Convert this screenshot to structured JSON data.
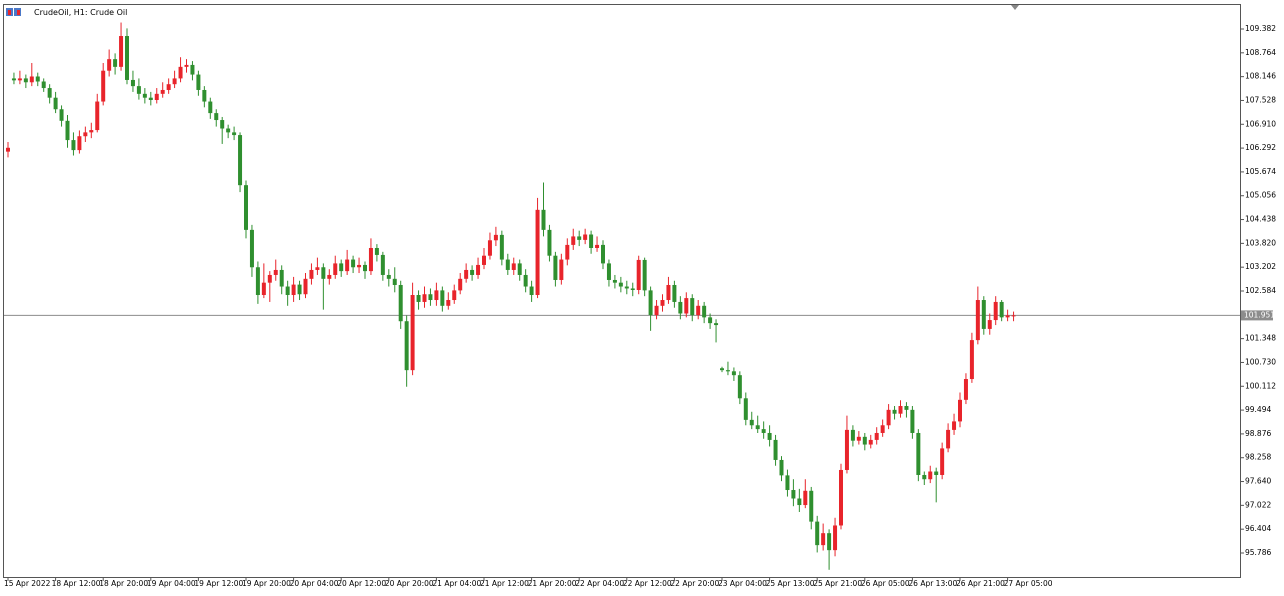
{
  "chart_data": {
    "type": "candlestick",
    "title": "CrudeOil, H1:  Crude Oil",
    "up_color": "#e8242b",
    "down_color": "#2f8f2f",
    "categories": [
      "15 Apr 2022",
      null,
      null,
      null,
      null,
      null,
      null,
      null,
      "18 Apr 12:00",
      null,
      null,
      null,
      null,
      null,
      null,
      null,
      "18 Apr 20:00",
      null,
      null,
      null,
      null,
      null,
      null,
      null,
      "19 Apr 04:00",
      null,
      null,
      null,
      null,
      null,
      null,
      null,
      "19 Apr 12:00",
      null,
      null,
      null,
      null,
      null,
      null,
      null,
      "19 Apr 20:00",
      null,
      null,
      null,
      null,
      null,
      null,
      null,
      "20 Apr 04:00",
      null,
      null,
      null,
      null,
      null,
      null,
      null,
      "20 Apr 12:00",
      null,
      null,
      null,
      null,
      null,
      null,
      null,
      "20 Apr 20:00",
      null,
      null,
      null,
      null,
      null,
      null,
      null,
      "21 Apr 04:00",
      null,
      null,
      null,
      null,
      null,
      null,
      null,
      "21 Apr 12:00",
      null,
      null,
      null,
      null,
      null,
      null,
      null,
      "21 Apr 20:00",
      null,
      null,
      null,
      null,
      null,
      null,
      null,
      "22 Apr 04:00",
      null,
      null,
      null,
      null,
      null,
      null,
      null,
      "22 Apr 12:00",
      null,
      null,
      null,
      null,
      null,
      null,
      null,
      "22 Apr 20:00",
      null,
      null,
      null,
      null,
      null,
      null,
      null,
      "23 Apr 04:00",
      null,
      null,
      null,
      null,
      null,
      null,
      null,
      "25 Apr 13:00",
      null,
      null,
      null,
      null,
      null,
      null,
      null,
      "25 Apr 21:00",
      null,
      null,
      null,
      null,
      null,
      null,
      null,
      "26 Apr 05:00",
      null,
      null,
      null,
      null,
      null,
      null,
      null,
      "26 Apr 13:00",
      null,
      null,
      null,
      null,
      null,
      null,
      null,
      "26 Apr 21:00",
      null,
      null,
      null,
      null,
      null,
      null,
      null,
      "27 Apr 05:00",
      null
    ],
    "open": [
      106.2,
      108.1,
      108.05,
      108.1,
      108.0,
      108.15,
      108.02,
      107.85,
      107.6,
      107.3,
      107.0,
      106.5,
      106.24,
      106.6,
      106.7,
      106.76,
      107.5,
      108.3,
      108.6,
      108.4,
      109.2,
      108.06,
      107.9,
      107.7,
      107.6,
      107.54,
      107.7,
      107.8,
      107.95,
      108.1,
      108.4,
      108.45,
      108.2,
      107.8,
      107.5,
      107.2,
      107.02,
      106.8,
      106.7,
      106.63,
      105.33,
      104.17,
      103.2,
      102.48,
      102.8,
      103.0,
      103.13,
      102.7,
      102.48,
      102.75,
      102.5,
      102.9,
      103.13,
      103.2,
      102.9,
      103.0,
      103.3,
      103.1,
      103.4,
      103.2,
      103.26,
      103.1,
      103.7,
      103.52,
      103.0,
      102.9,
      102.74,
      101.8,
      100.53,
      102.48,
      102.3,
      102.5,
      102.35,
      102.6,
      102.2,
      102.35,
      102.6,
      102.9,
      103.13,
      103.0,
      103.26,
      103.5,
      103.9,
      104.04,
      103.4,
      103.13,
      103.3,
      103.0,
      102.7,
      102.48,
      104.69,
      104.17,
      103.5,
      102.87,
      103.4,
      103.78,
      104.0,
      103.91,
      104.05,
      103.7,
      103.78,
      103.3,
      102.87,
      102.8,
      102.7,
      102.65,
      102.61,
      103.39,
      102.6,
      101.96,
      102.2,
      102.35,
      102.74,
      102.3,
      102.0,
      102.4,
      101.96,
      102.2,
      101.9,
      101.75,
      100.58,
      100.53,
      100.5,
      100.4,
      99.8,
      99.24,
      99.1,
      99.0,
      98.9,
      98.72,
      98.2,
      97.8,
      97.42,
      97.2,
      97.03,
      97.4,
      96.6,
      95.99,
      96.3,
      95.86,
      96.5,
      97.94,
      98.98,
      98.7,
      98.8,
      98.6,
      98.72,
      98.9,
      99.1,
      99.5,
      99.4,
      99.6,
      99.5,
      98.9,
      97.81,
      97.7,
      97.9,
      97.81,
      98.5,
      98.98,
      99.2,
      99.76,
      100.3,
      101.31,
      102.35,
      101.6,
      101.83,
      102.3,
      101.9,
      101.95
    ],
    "high": [
      106.45,
      108.25,
      108.3,
      108.2,
      108.5,
      108.25,
      108.1,
      107.95,
      107.75,
      107.4,
      107.15,
      106.7,
      106.75,
      106.85,
      106.95,
      107.7,
      108.5,
      108.85,
      108.75,
      109.55,
      109.4,
      108.3,
      108.1,
      107.85,
      107.75,
      107.85,
      108.0,
      108.1,
      108.3,
      108.65,
      108.6,
      108.55,
      108.3,
      107.9,
      107.6,
      107.3,
      107.1,
      106.9,
      106.85,
      106.7,
      105.45,
      104.3,
      103.35,
      103.3,
      103.1,
      103.4,
      103.25,
      102.85,
      102.95,
      102.85,
      103.05,
      103.3,
      103.45,
      103.3,
      103.15,
      103.5,
      103.4,
      103.65,
      103.5,
      103.45,
      103.35,
      103.95,
      103.8,
      103.6,
      103.15,
      103.2,
      102.85,
      101.95,
      102.8,
      102.6,
      102.7,
      102.65,
      102.8,
      102.7,
      102.55,
      102.75,
      103.05,
      103.3,
      103.25,
      103.45,
      103.7,
      104.1,
      104.25,
      104.15,
      103.55,
      103.45,
      103.4,
      103.15,
      102.85,
      105.0,
      105.4,
      104.3,
      103.6,
      103.55,
      103.95,
      104.2,
      104.15,
      104.2,
      104.15,
      104.0,
      103.9,
      103.4,
      103.0,
      102.95,
      102.85,
      102.8,
      103.5,
      103.45,
      102.7,
      102.35,
      102.5,
      102.95,
      102.85,
      102.45,
      102.55,
      102.5,
      102.35,
      102.3,
      102.0,
      101.85,
      100.62,
      100.75,
      100.6,
      100.5,
      99.95,
      99.45,
      99.35,
      99.2,
      99.1,
      98.85,
      98.3,
      97.95,
      97.7,
      97.45,
      97.7,
      97.5,
      96.75,
      96.55,
      96.4,
      96.7,
      98.1,
      99.35,
      99.1,
      98.95,
      98.9,
      98.85,
      99.05,
      99.25,
      99.65,
      99.6,
      99.75,
      99.7,
      99.6,
      99.0,
      97.9,
      98.05,
      98.0,
      98.65,
      99.15,
      99.4,
      99.95,
      100.45,
      101.5,
      102.7,
      102.45,
      102.0,
      102.45,
      102.35,
      102.1,
      102.05
    ],
    "low": [
      106.05,
      107.95,
      107.95,
      107.85,
      107.9,
      107.9,
      107.75,
      107.45,
      107.2,
      106.85,
      106.3,
      106.1,
      106.15,
      106.45,
      106.55,
      106.7,
      107.4,
      108.15,
      108.2,
      108.3,
      107.95,
      107.75,
      107.55,
      107.45,
      107.4,
      107.45,
      107.6,
      107.7,
      107.85,
      108.0,
      108.25,
      108.05,
      107.65,
      107.35,
      107.05,
      106.85,
      106.4,
      106.55,
      106.5,
      105.15,
      103.95,
      102.95,
      102.25,
      102.4,
      102.3,
      102.85,
      102.5,
      102.2,
      102.3,
      102.35,
      102.4,
      102.75,
      103.0,
      102.1,
      102.75,
      102.9,
      102.95,
      103.0,
      103.05,
      103.05,
      102.9,
      103.0,
      103.35,
      102.85,
      102.7,
      102.55,
      101.6,
      100.1,
      100.4,
      102.1,
      102.15,
      102.2,
      102.2,
      102.05,
      102.1,
      102.25,
      102.5,
      102.8,
      102.85,
      102.9,
      103.15,
      103.4,
      103.75,
      103.25,
      103.0,
      103.0,
      102.85,
      102.55,
      102.3,
      102.4,
      104.0,
      103.35,
      102.7,
      102.75,
      103.25,
      103.65,
      103.75,
      103.8,
      103.55,
      103.6,
      103.15,
      102.7,
      102.65,
      102.55,
      102.5,
      102.45,
      102.5,
      102.45,
      101.55,
      101.85,
      102.05,
      102.25,
      102.15,
      101.85,
      101.9,
      101.8,
      101.85,
      101.75,
      101.6,
      101.25,
      100.48,
      100.4,
      100.25,
      99.65,
      99.1,
      99.0,
      98.9,
      98.75,
      98.55,
      98.05,
      97.65,
      97.25,
      97.0,
      96.85,
      96.95,
      96.4,
      95.8,
      95.85,
      95.35,
      95.7,
      96.4,
      97.85,
      98.55,
      98.6,
      98.45,
      98.5,
      98.6,
      98.8,
      99.0,
      99.25,
      99.3,
      99.3,
      98.75,
      97.65,
      97.55,
      97.6,
      97.1,
      97.7,
      98.4,
      98.85,
      99.05,
      99.65,
      100.2,
      101.2,
      101.45,
      101.45,
      101.7,
      101.8,
      101.8,
      101.8
    ],
    "close": [
      106.3,
      108.05,
      108.1,
      108.0,
      108.15,
      108.02,
      107.85,
      107.6,
      107.3,
      107.0,
      106.5,
      106.24,
      106.6,
      106.7,
      106.76,
      107.5,
      108.3,
      108.6,
      108.4,
      109.2,
      108.06,
      107.9,
      107.7,
      107.6,
      107.54,
      107.7,
      107.8,
      107.95,
      108.1,
      108.4,
      108.45,
      108.2,
      107.8,
      107.5,
      107.2,
      107.02,
      106.8,
      106.7,
      106.63,
      105.33,
      104.17,
      103.2,
      102.48,
      102.8,
      103.0,
      103.13,
      102.7,
      102.48,
      102.75,
      102.5,
      102.9,
      103.13,
      103.2,
      102.9,
      103.0,
      103.3,
      103.1,
      103.4,
      103.2,
      103.26,
      103.1,
      103.7,
      103.52,
      103.0,
      102.9,
      102.74,
      101.8,
      100.53,
      102.48,
      102.3,
      102.5,
      102.35,
      102.6,
      102.2,
      102.35,
      102.6,
      102.9,
      103.13,
      103.0,
      103.26,
      103.5,
      103.9,
      104.04,
      103.4,
      103.13,
      103.3,
      103.0,
      102.7,
      102.48,
      104.69,
      104.17,
      103.5,
      102.87,
      103.4,
      103.78,
      104.0,
      103.91,
      104.05,
      103.7,
      103.78,
      103.3,
      102.87,
      102.8,
      102.7,
      102.65,
      102.61,
      103.39,
      102.6,
      101.96,
      102.2,
      102.35,
      102.74,
      102.3,
      102.0,
      102.4,
      101.96,
      102.2,
      101.9,
      101.75,
      101.7,
      100.53,
      100.5,
      100.4,
      99.8,
      99.24,
      99.1,
      99.0,
      98.9,
      98.72,
      98.2,
      97.8,
      97.42,
      97.2,
      97.03,
      97.4,
      96.6,
      95.99,
      96.3,
      95.86,
      96.5,
      97.94,
      98.98,
      98.7,
      98.8,
      98.6,
      98.72,
      98.9,
      99.1,
      99.5,
      99.4,
      99.6,
      99.5,
      98.9,
      97.81,
      97.7,
      97.9,
      97.81,
      98.5,
      98.98,
      99.2,
      99.76,
      100.3,
      101.31,
      102.35,
      101.6,
      101.83,
      102.3,
      101.9,
      101.95,
      101.951
    ],
    "current_price": 101.951,
    "current_price_color": "#8c8c8c",
    "ylim": [
      95.163,
      110.005
    ],
    "yticks": [
      {
        "value": 95.786,
        "label": "95.786"
      },
      96.404,
      {
        "value": 97.022,
        "label": "97.022"
      },
      {
        "value": 97.64,
        "label": "97.640"
      },
      98.258,
      98.876,
      99.494,
      100.112,
      {
        "value": 100.73,
        "label": "100.730"
      },
      101.348,
      102.584,
      103.202,
      {
        "value": 103.82,
        "label": "103.820"
      },
      104.438,
      105.056,
      105.674,
      106.292,
      {
        "value": 106.91,
        "label": "106.910"
      },
      107.528,
      108.146,
      108.764,
      109.382
    ],
    "grid": false
  }
}
